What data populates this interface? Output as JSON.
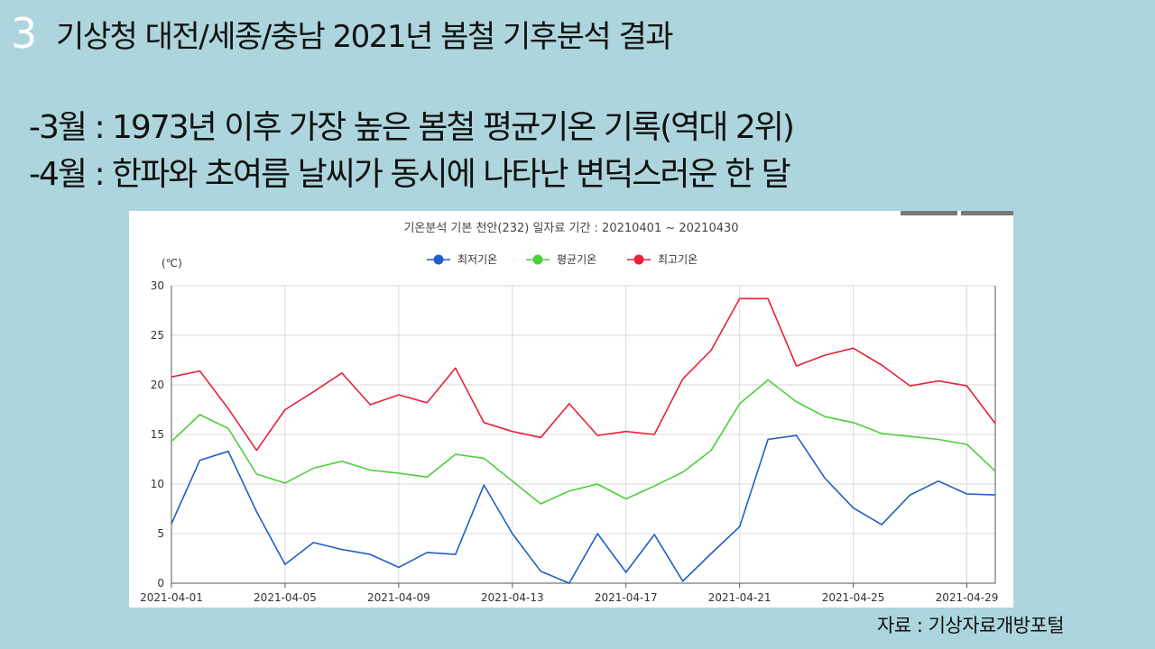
{
  "slide": {
    "number": "3",
    "title": "기상청 대전/세종/충남 2021년 봄철 기후분석 결과",
    "bullets": [
      "-3월 : 1973년 이후 가장 높은 봄철 평균기온 기록(역대 2위)",
      "-4월 : 한파와 초여름 날씨가 동시에 나타난 변덕스러운 한 달"
    ],
    "source": "자료 : 기상자료개방포털"
  },
  "chart_data": {
    "type": "line",
    "title": "기온분석 기본 천안(232) 일자료 기간 : 20210401 ~ 20210430",
    "ylabel": "(℃)",
    "xlabel": "",
    "ylim": [
      0,
      30
    ],
    "yticks": [
      0,
      5,
      10,
      15,
      20,
      25,
      30
    ],
    "grid": true,
    "legend_position": "top-center",
    "x": [
      "2021-04-01",
      "2021-04-02",
      "2021-04-03",
      "2021-04-04",
      "2021-04-05",
      "2021-04-06",
      "2021-04-07",
      "2021-04-08",
      "2021-04-09",
      "2021-04-10",
      "2021-04-11",
      "2021-04-12",
      "2021-04-13",
      "2021-04-14",
      "2021-04-15",
      "2021-04-16",
      "2021-04-17",
      "2021-04-18",
      "2021-04-19",
      "2021-04-20",
      "2021-04-21",
      "2021-04-22",
      "2021-04-23",
      "2021-04-24",
      "2021-04-25",
      "2021-04-26",
      "2021-04-27",
      "2021-04-28",
      "2021-04-29",
      "2021-04-30"
    ],
    "xtick_labels": [
      "2021-04-01",
      "2021-04-05",
      "2021-04-09",
      "2021-04-13",
      "2021-04-17",
      "2021-04-21",
      "2021-04-25",
      "2021-04-29"
    ],
    "series": [
      {
        "name": "최저기온",
        "color": "#1f5fc4",
        "values": [
          6.0,
          12.4,
          13.3,
          7.2,
          1.9,
          4.1,
          3.4,
          2.9,
          1.6,
          3.1,
          2.9,
          9.9,
          5.0,
          1.2,
          0.0,
          5.0,
          1.1,
          4.9,
          0.2,
          3.0,
          5.7,
          14.5,
          14.9,
          10.6,
          7.6,
          5.9,
          8.9,
          10.3,
          9.0,
          8.9
        ]
      },
      {
        "name": "평균기온",
        "color": "#4ccf3a",
        "values": [
          14.3,
          17.0,
          15.6,
          11.0,
          10.1,
          11.6,
          12.3,
          11.4,
          11.1,
          10.7,
          13.0,
          12.6,
          10.3,
          8.0,
          9.3,
          10.0,
          8.5,
          9.8,
          11.2,
          13.4,
          18.1,
          20.5,
          18.3,
          16.8,
          16.2,
          15.1,
          14.8,
          14.5,
          14.0,
          11.3
        ]
      },
      {
        "name": "최고기온",
        "color": "#e8203a",
        "values": [
          20.8,
          21.4,
          17.6,
          13.4,
          17.5,
          19.3,
          21.2,
          18.0,
          19.0,
          18.2,
          21.7,
          16.2,
          15.3,
          14.7,
          18.1,
          14.9,
          15.3,
          15.0,
          20.6,
          23.5,
          28.7,
          28.7,
          21.9,
          23.0,
          23.7,
          22.0,
          19.9,
          20.4,
          19.9,
          16.1
        ]
      }
    ]
  }
}
